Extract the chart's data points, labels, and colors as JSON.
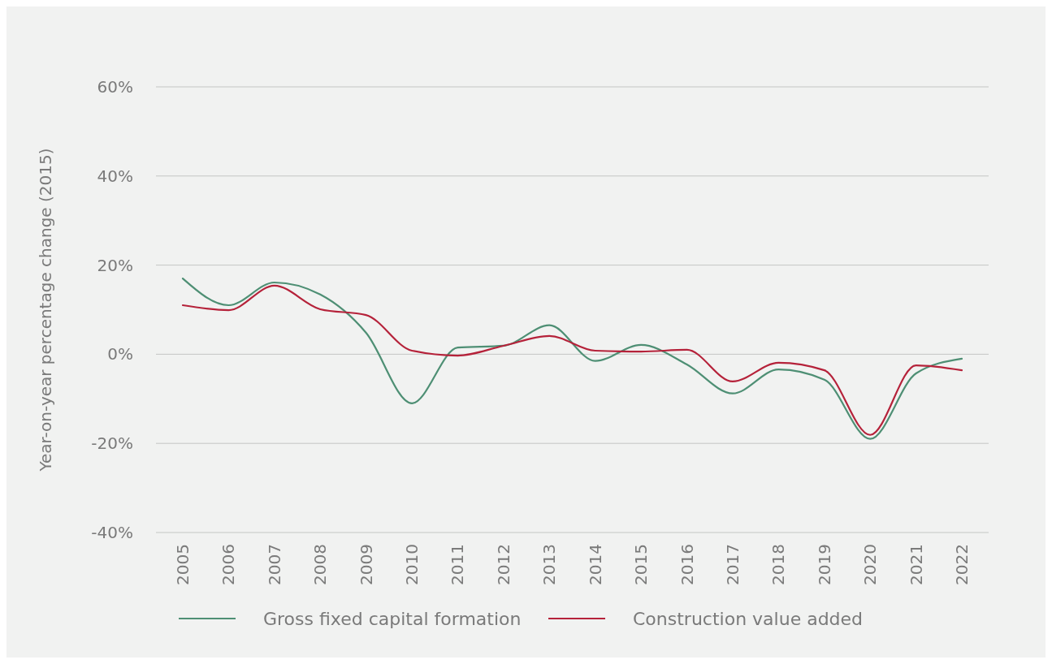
{
  "chart_data": {
    "type": "line",
    "ylabel": "Year-on-year percentage change (2015)",
    "categories": [
      "2005",
      "2006",
      "2007",
      "2008",
      "2009",
      "2010",
      "2011",
      "2012",
      "2013",
      "2014",
      "2015",
      "2016",
      "2017",
      "2018",
      "2019",
      "2020",
      "2021",
      "2022"
    ],
    "series": [
      {
        "name": "Gross fixed capital formation",
        "color": "#4e8f74",
        "values": [
          17.0,
          11.0,
          16.1,
          13.4,
          4.8,
          -11.0,
          1.5,
          1.9,
          6.5,
          -1.5,
          2.1,
          -2.3,
          -8.8,
          -3.4,
          -5.7,
          -19.0,
          -4.3,
          -1.0
        ]
      },
      {
        "name": "Construction value added",
        "color": "#b5223a",
        "values": [
          11.0,
          9.9,
          15.4,
          10.1,
          8.8,
          0.8,
          -0.3,
          1.9,
          4.1,
          0.8,
          0.6,
          1.0,
          -6.1,
          -1.9,
          -3.6,
          -18.1,
          -2.5,
          -3.6
        ]
      }
    ],
    "ylim": [
      -40,
      60
    ],
    "yticks": [
      {
        "value": -40,
        "label": "-40%"
      },
      {
        "value": -20,
        "label": "-20%"
      },
      {
        "value": 0,
        "label": "0%"
      },
      {
        "value": 20,
        "label": "20%"
      },
      {
        "value": 40,
        "label": "40%"
      },
      {
        "value": 60,
        "label": "60%"
      }
    ],
    "grid": "y",
    "legend": "bottom",
    "marker": "none",
    "line_style": "solid"
  }
}
